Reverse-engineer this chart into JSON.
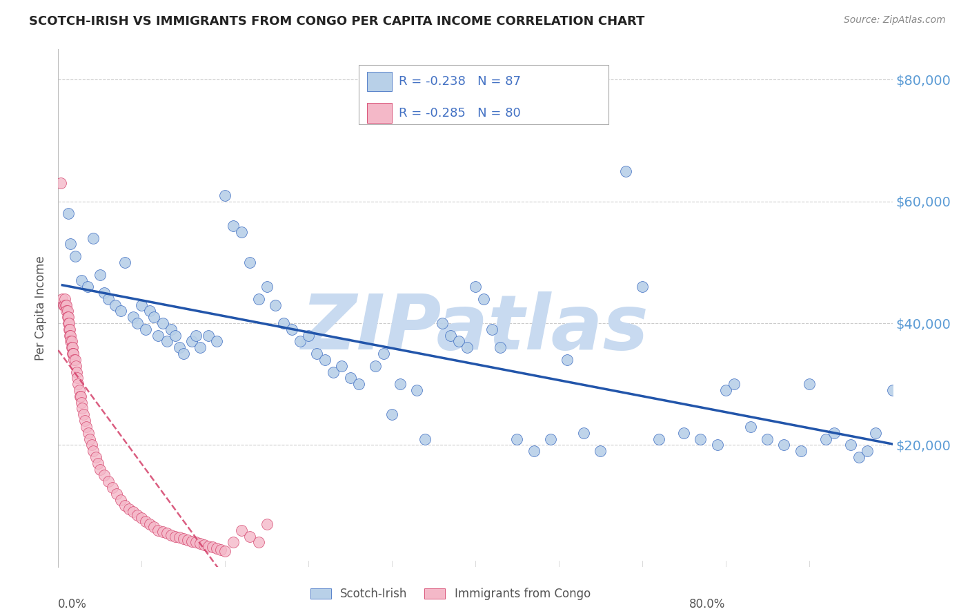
{
  "title": "SCOTCH-IRISH VS IMMIGRANTS FROM CONGO PER CAPITA INCOME CORRELATION CHART",
  "source": "Source: ZipAtlas.com",
  "ylabel": "Per Capita Income",
  "y_tick_labels": [
    "$20,000",
    "$40,000",
    "$60,000",
    "$80,000"
  ],
  "y_tick_values": [
    20000,
    40000,
    60000,
    80000
  ],
  "y_tick_color": "#5b9bd5",
  "legend_R_N_color": "#4472c4",
  "legend": {
    "series1_label": "Scotch-Irish",
    "series2_label": "Immigrants from Congo",
    "series1_R": "-0.238",
    "series1_N": "87",
    "series2_R": "-0.285",
    "series2_N": "80"
  },
  "scotch_irish": {
    "color": "#b8d0e8",
    "edge_color": "#4472c4",
    "line_color": "#2255aa",
    "x": [
      1.2,
      1.5,
      2.0,
      2.8,
      3.5,
      4.2,
      5.0,
      5.5,
      6.0,
      6.8,
      7.5,
      8.0,
      9.0,
      9.5,
      10.0,
      10.5,
      11.0,
      11.5,
      12.0,
      12.5,
      13.0,
      13.5,
      14.0,
      14.5,
      15.0,
      16.0,
      16.5,
      17.0,
      18.0,
      19.0,
      20.0,
      21.0,
      22.0,
      23.0,
      24.0,
      25.0,
      26.0,
      27.0,
      28.0,
      29.0,
      30.0,
      31.0,
      32.0,
      33.0,
      34.0,
      35.0,
      36.0,
      38.0,
      39.0,
      40.0,
      41.0,
      43.0,
      44.0,
      46.0,
      47.0,
      48.0,
      49.0,
      50.0,
      51.0,
      52.0,
      53.0,
      55.0,
      57.0,
      59.0,
      61.0,
      63.0,
      65.0,
      68.0,
      70.0,
      72.0,
      75.0,
      77.0,
      79.0,
      80.0,
      81.0,
      83.0,
      85.0,
      87.0,
      89.0,
      90.0,
      92.0,
      93.0,
      95.0,
      96.0,
      97.0,
      98.0,
      100.0
    ],
    "y": [
      58000,
      53000,
      51000,
      47000,
      46000,
      54000,
      48000,
      45000,
      44000,
      43000,
      42000,
      50000,
      41000,
      40000,
      43000,
      39000,
      42000,
      41000,
      38000,
      40000,
      37000,
      39000,
      38000,
      36000,
      35000,
      37000,
      38000,
      36000,
      38000,
      37000,
      61000,
      56000,
      55000,
      50000,
      44000,
      46000,
      43000,
      40000,
      39000,
      37000,
      38000,
      35000,
      34000,
      32000,
      33000,
      31000,
      30000,
      33000,
      35000,
      25000,
      30000,
      29000,
      21000,
      40000,
      38000,
      37000,
      36000,
      46000,
      44000,
      39000,
      36000,
      21000,
      19000,
      21000,
      34000,
      22000,
      19000,
      65000,
      46000,
      21000,
      22000,
      21000,
      20000,
      29000,
      30000,
      23000,
      21000,
      20000,
      19000,
      30000,
      21000,
      22000,
      20000,
      18000,
      19000,
      22000,
      29000
    ]
  },
  "congo": {
    "color": "#f4b8c8",
    "edge_color": "#d4406a",
    "line_color": "#d4406a",
    "x": [
      0.3,
      0.5,
      0.6,
      0.7,
      0.8,
      0.9,
      1.0,
      1.0,
      1.1,
      1.1,
      1.2,
      1.2,
      1.3,
      1.3,
      1.4,
      1.4,
      1.5,
      1.5,
      1.6,
      1.6,
      1.7,
      1.7,
      1.8,
      1.8,
      1.9,
      2.0,
      2.1,
      2.2,
      2.3,
      2.4,
      2.5,
      2.6,
      2.7,
      2.8,
      2.9,
      3.0,
      3.2,
      3.4,
      3.6,
      3.8,
      4.0,
      4.2,
      4.5,
      4.8,
      5.0,
      5.5,
      6.0,
      6.5,
      7.0,
      7.5,
      8.0,
      8.5,
      9.0,
      9.5,
      10.0,
      10.5,
      11.0,
      11.5,
      12.0,
      12.5,
      13.0,
      13.5,
      14.0,
      14.5,
      15.0,
      15.5,
      16.0,
      16.5,
      17.0,
      17.5,
      18.0,
      18.5,
      19.0,
      19.5,
      20.0,
      21.0,
      22.0,
      23.0,
      24.0,
      25.0
    ],
    "y": [
      63000,
      44000,
      43000,
      43000,
      44000,
      43000,
      43000,
      42000,
      42000,
      41000,
      41000,
      40000,
      40000,
      39000,
      39000,
      38000,
      38000,
      37000,
      37000,
      36000,
      36000,
      35000,
      35000,
      35000,
      34000,
      34000,
      33000,
      32000,
      31000,
      30000,
      29000,
      28000,
      28000,
      27000,
      26000,
      25000,
      24000,
      23000,
      22000,
      21000,
      20000,
      19000,
      18000,
      17000,
      16000,
      15000,
      14000,
      13000,
      12000,
      11000,
      10000,
      9500,
      9000,
      8500,
      8000,
      7500,
      7000,
      6500,
      6000,
      5800,
      5500,
      5200,
      5000,
      4800,
      4600,
      4400,
      4200,
      4000,
      3800,
      3600,
      3400,
      3200,
      3000,
      2800,
      2600,
      4000,
      6000,
      5000,
      4000,
      7000
    ]
  },
  "watermark": "ZIPatlas",
  "watermark_color": "#c8daf0",
  "background_color": "#ffffff",
  "grid_color": "#cccccc",
  "figsize": [
    14.06,
    8.92
  ],
  "dpi": 100,
  "xlim": [
    0,
    100
  ],
  "ylim": [
    0,
    85000
  ]
}
